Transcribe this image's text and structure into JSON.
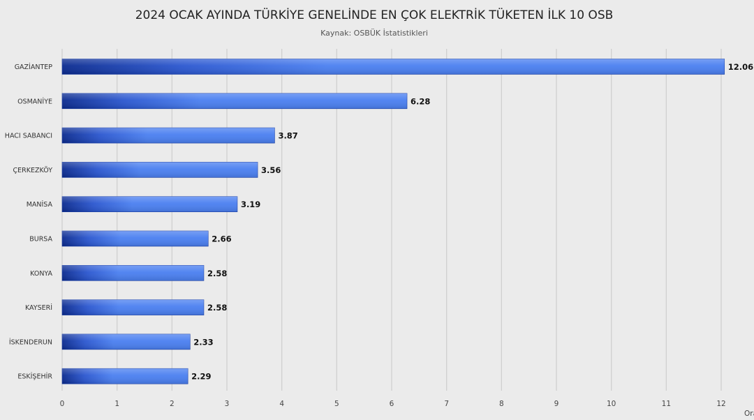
{
  "chart_data": {
    "type": "bar",
    "orientation": "horizontal",
    "title": "2024 OCAK AYINDA TÜRKİYE GENELİNDE EN ÇOK ELEKTRİK TÜKETEN İLK 10 OSB",
    "subtitle": "Kaynak: OSBÜK İstatistikleri",
    "categories": [
      "GAZİANTEP",
      "OSMANİYE",
      "HACI SABANCI",
      "ÇERKEZKÖY",
      "MANİSA",
      "BURSA",
      "KONYA",
      "KAYSERİ",
      "İSKENDERUN",
      "ESKİŞEHİR"
    ],
    "values": [
      12.06,
      6.28,
      3.87,
      3.56,
      3.19,
      2.66,
      2.58,
      2.58,
      2.33,
      2.29
    ],
    "value_labels": [
      "12.06",
      "6.28",
      "3.87",
      "3.56",
      "3.19",
      "2.66",
      "2.58",
      "2.58",
      "2.33",
      "2.29"
    ],
    "xlabel": "Ora",
    "ylabel": "",
    "xlim": [
      0,
      12
    ],
    "xticks": [
      "0",
      "1",
      "2",
      "3",
      "4",
      "5",
      "6",
      "7",
      "8",
      "9",
      "10",
      "11",
      "12"
    ],
    "grid": true,
    "legend": "none",
    "colors": {
      "bar_dark": "#0a2a8f",
      "bar_light": "#4a7ff0",
      "grid": "#cfcfcf",
      "background": "#ebebeb"
    }
  }
}
